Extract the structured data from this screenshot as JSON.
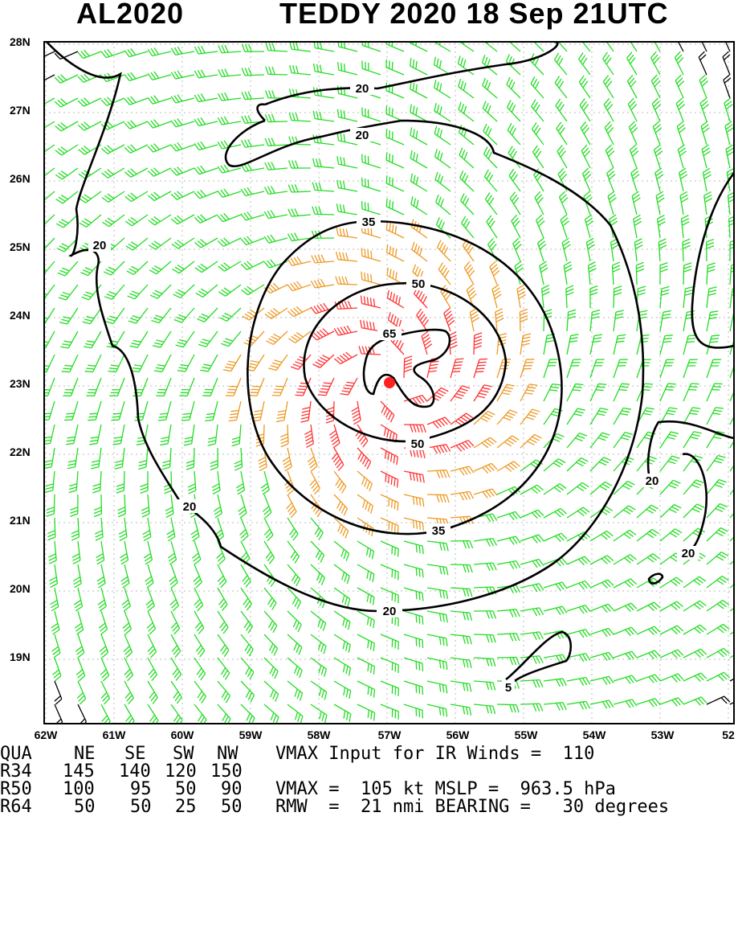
{
  "title": {
    "storm_id": "AL2020",
    "description": "TEDDY 2020 18 Sep 21UTC"
  },
  "axes": {
    "lat_labels": [
      "28N",
      "27N",
      "26N",
      "25N",
      "24N",
      "23N",
      "22N",
      "21N",
      "20N",
      "19N"
    ],
    "lon_labels": [
      "62W",
      "61W",
      "60W",
      "59W",
      "58W",
      "57W",
      "56W",
      "55W",
      "54W",
      "53W",
      "52"
    ]
  },
  "contours": [
    {
      "label": "20"
    },
    {
      "label": "20"
    },
    {
      "label": "20"
    },
    {
      "label": "20"
    },
    {
      "label": "20"
    },
    {
      "label": "20"
    },
    {
      "label": "35"
    },
    {
      "label": "35"
    },
    {
      "label": "50"
    },
    {
      "label": "50"
    },
    {
      "label": "65"
    },
    {
      "label": "5"
    }
  ],
  "storm": {
    "center_lat": 23.05,
    "center_lon": -57.0,
    "marker_color": "#ff2020"
  },
  "wind_colors": {
    "calm": "#000000",
    "tropical_storm": "#22dd22",
    "strong": "#ee9922",
    "hurricane": "#ff3333"
  },
  "table": {
    "header": [
      "QUA",
      "NE",
      "SE",
      "SW",
      "NW"
    ],
    "rows": [
      {
        "name": "R34",
        "values": [
          "145",
          "140",
          "120",
          "150"
        ]
      },
      {
        "name": "R50",
        "values": [
          "100",
          "95",
          "50",
          "90"
        ]
      },
      {
        "name": "R64",
        "values": [
          "50",
          "50",
          "25",
          "50"
        ]
      }
    ],
    "info1": "VMAX Input for IR Winds =  110",
    "info2": "VMAX =  105 kt MSLP =  963.5 hPa",
    "info3": "RMW  =  21 nmi BEARING =   30 degrees"
  }
}
